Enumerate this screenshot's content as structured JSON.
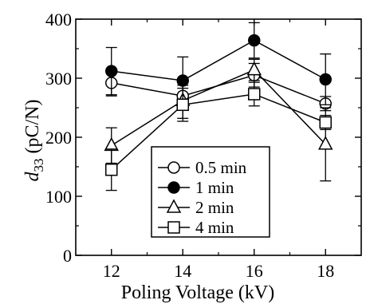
{
  "chart_data": {
    "type": "line",
    "xlabel": "Poling Voltage (kV)",
    "ylabel_main": "d",
    "ylabel_sub": "33",
    "ylabel_unit": " (pC/N)",
    "xlim": [
      11,
      19
    ],
    "ylim": [
      0,
      400
    ],
    "xticks": [
      12,
      14,
      16,
      18
    ],
    "yticks": [
      0,
      100,
      200,
      300,
      400
    ],
    "legend_position": "bottom-center",
    "x": [
      12,
      14,
      16,
      18
    ],
    "series": [
      {
        "name": "0.5 min",
        "marker": "circle-open",
        "values": [
          292,
          270,
          305,
          257
        ],
        "errors": [
          22,
          18,
          20,
          12
        ]
      },
      {
        "name": "1 min",
        "marker": "circle-filled",
        "values": [
          312,
          296,
          364,
          298
        ],
        "errors": [
          40,
          40,
          30,
          43
        ]
      },
      {
        "name": "2 min",
        "marker": "triangle-open",
        "values": [
          186,
          262,
          314,
          188
        ],
        "errors": [
          30,
          30,
          18,
          62
        ]
      },
      {
        "name": "4 min",
        "marker": "square-open",
        "values": [
          145,
          255,
          273,
          225
        ],
        "errors": [
          35,
          28,
          20,
          12
        ]
      }
    ]
  }
}
